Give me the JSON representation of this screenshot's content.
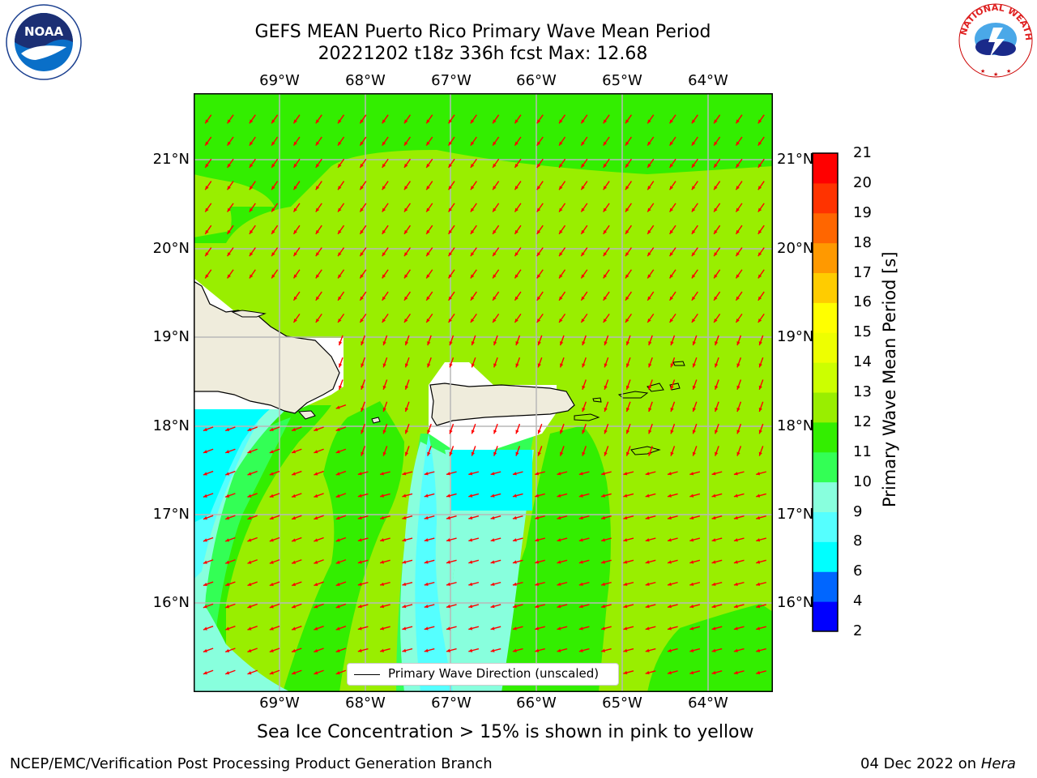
{
  "title": {
    "line1": "GEFS MEAN Puerto Rico Primary Wave Mean Period",
    "line2": "20221202 t18z 336h fcst   Max: 12.68"
  },
  "logos": {
    "noaa_text": "NOAA",
    "noaa_ring": "NATIONAL OCEANIC AND ATMOSPHERIC ADMINISTRATION · U.S. DEPARTMENT OF COMMERCE",
    "nws_ring": "NATIONAL WEATHER SERVICE"
  },
  "map": {
    "lon_labels": [
      "69°W",
      "68°W",
      "67°W",
      "66°W",
      "65°W",
      "64°W"
    ],
    "lat_labels": [
      "21°N",
      "20°N",
      "19°N",
      "18°N",
      "17°N",
      "16°N"
    ],
    "legend_label": "Primary Wave Direction (unscaled)",
    "colors": {
      "land": "#efecdc",
      "arrow": "#ff0000",
      "grid": "#b8b8b8",
      "band_9_10": "#88ffdd",
      "band_8_9": "#55ffff",
      "band_6_8": "#00ffff",
      "band_10_11": "#33ff55",
      "band_11_12": "#33ee00",
      "band_12_13": "#99ee00"
    }
  },
  "colorbar": {
    "ticks": [
      "21",
      "20",
      "19",
      "18",
      "17",
      "16",
      "15",
      "14",
      "13",
      "12",
      "11",
      "10",
      "9",
      "8",
      "6",
      "4",
      "2"
    ],
    "colors": [
      "#0000ff",
      "#0066ff",
      "#00ffff",
      "#55ffff",
      "#88ffdd",
      "#33ff55",
      "#33ee00",
      "#99ee00",
      "#ccff00",
      "#eeff00",
      "#ffff00",
      "#ffcc00",
      "#ff9900",
      "#ff6600",
      "#ff3300",
      "#ff0000"
    ],
    "label": "Primary Wave Mean Period [s]"
  },
  "caption": "Sea Ice Concentration > 15% is shown in pink to yellow",
  "footer": {
    "left": "NCEP/EMC/Verification Post Processing Product Generation Branch",
    "right_date": "04 Dec 2022 on ",
    "right_host": "Hera"
  }
}
